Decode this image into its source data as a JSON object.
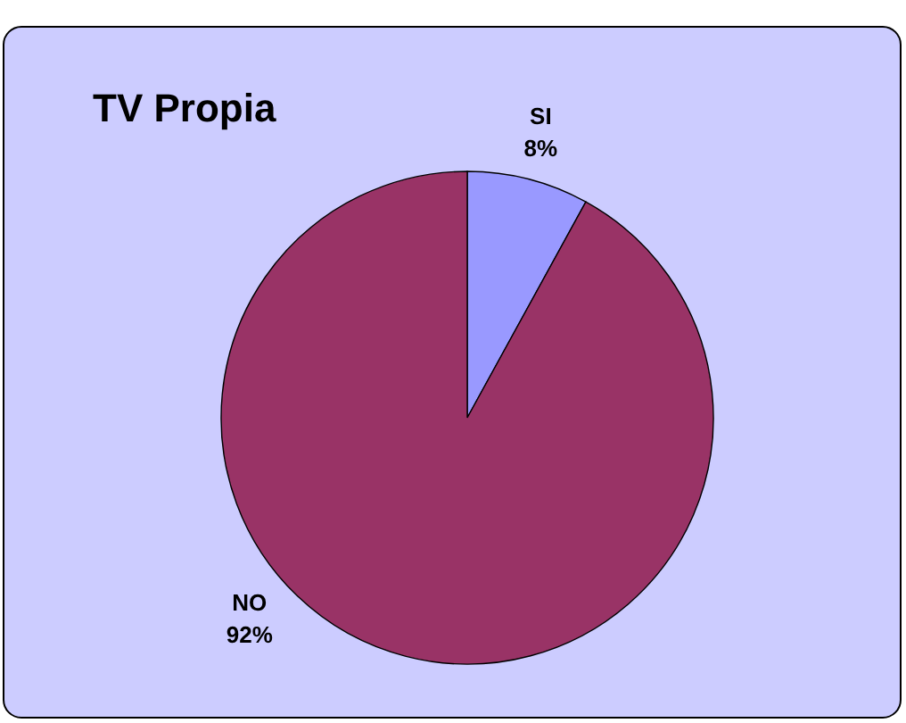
{
  "chart_data": {
    "type": "pie",
    "title": "TV Propia",
    "categories": [
      "SI",
      "NO"
    ],
    "values": [
      8,
      92
    ],
    "colors": [
      "#9999ff",
      "#993366"
    ],
    "value_labels": [
      "8%",
      "92%"
    ]
  }
}
